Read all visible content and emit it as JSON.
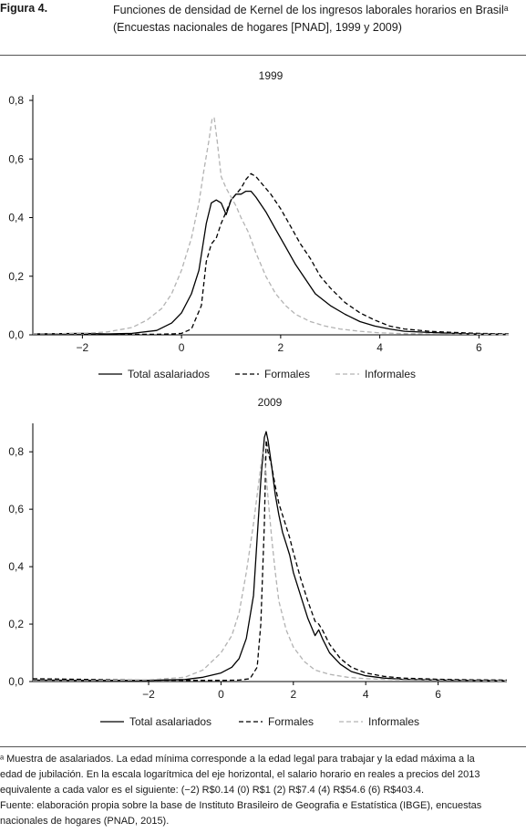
{
  "header": {
    "figure_label": "Figura 4.",
    "title_line1": "Funciones de densidad de Kernel de los ingresos laborales horarios en Brasilᵃ",
    "title_line2": "(Encuestas nacionales de hogares [PNAD], 1999 y 2009)"
  },
  "chart_data": [
    {
      "type": "line",
      "title": "1999",
      "xlabel": "",
      "ylabel": "",
      "xlim": [
        -3.0,
        6.6
      ],
      "ylim": [
        0,
        0.8
      ],
      "xticks": [
        -2,
        0,
        2,
        4,
        6
      ],
      "xtick_labels": [
        "−2",
        "0",
        "2",
        "4",
        "6"
      ],
      "yticks": [
        0,
        0.2,
        0.4,
        0.6,
        0.8
      ],
      "ytick_labels": [
        "0,0",
        "0,2",
        "0,4",
        "0,6",
        "0,8"
      ],
      "grid": false,
      "legend_position": "bottom",
      "series": [
        {
          "name": "Total asalariados",
          "style": "solid",
          "color": "#000000",
          "x": [
            -3.0,
            -2.0,
            -1.5,
            -1.0,
            -0.5,
            -0.2,
            0.0,
            0.2,
            0.35,
            0.5,
            0.6,
            0.7,
            0.8,
            0.9,
            1.0,
            1.1,
            1.2,
            1.3,
            1.4,
            1.5,
            1.7,
            1.9,
            2.1,
            2.3,
            2.5,
            2.7,
            3.0,
            3.3,
            3.6,
            3.9,
            4.2,
            4.5,
            5.0,
            5.5,
            6.0,
            6.6
          ],
          "y": [
            0.003,
            0.005,
            0.003,
            0.005,
            0.015,
            0.04,
            0.075,
            0.14,
            0.22,
            0.38,
            0.45,
            0.46,
            0.45,
            0.41,
            0.46,
            0.48,
            0.48,
            0.49,
            0.49,
            0.47,
            0.42,
            0.36,
            0.3,
            0.24,
            0.19,
            0.14,
            0.1,
            0.07,
            0.045,
            0.03,
            0.02,
            0.012,
            0.008,
            0.005,
            0.003,
            0.002
          ]
        },
        {
          "name": "Formales",
          "style": "dashed",
          "color": "#000000",
          "x": [
            -3.0,
            -2.0,
            -1.0,
            -0.5,
            -0.2,
            0.0,
            0.2,
            0.4,
            0.5,
            0.6,
            0.7,
            0.8,
            0.9,
            1.0,
            1.1,
            1.2,
            1.3,
            1.4,
            1.5,
            1.6,
            1.8,
            2.0,
            2.2,
            2.4,
            2.6,
            2.8,
            3.0,
            3.3,
            3.6,
            3.9,
            4.2,
            4.5,
            5.0,
            5.5,
            6.0,
            6.6
          ],
          "y": [
            0.003,
            0.003,
            0.002,
            0.002,
            0.003,
            0.005,
            0.02,
            0.1,
            0.25,
            0.31,
            0.33,
            0.38,
            0.42,
            0.46,
            0.48,
            0.5,
            0.53,
            0.55,
            0.54,
            0.52,
            0.48,
            0.43,
            0.37,
            0.31,
            0.26,
            0.2,
            0.16,
            0.11,
            0.075,
            0.05,
            0.03,
            0.02,
            0.012,
            0.008,
            0.005,
            0.003
          ]
        },
        {
          "name": "Informales",
          "style": "dashed",
          "color": "#b3b3b3",
          "x": [
            -3.0,
            -2.0,
            -1.5,
            -1.0,
            -0.7,
            -0.4,
            -0.2,
            0.0,
            0.2,
            0.35,
            0.45,
            0.55,
            0.62,
            0.66,
            0.72,
            0.8,
            0.9,
            1.0,
            1.1,
            1.2,
            1.35,
            1.5,
            1.7,
            1.9,
            2.1,
            2.3,
            2.6,
            2.9,
            3.2,
            3.6,
            4.0,
            4.5,
            5.0,
            6.0,
            6.6
          ],
          "y": [
            0.003,
            0.005,
            0.01,
            0.025,
            0.05,
            0.09,
            0.14,
            0.22,
            0.33,
            0.45,
            0.56,
            0.66,
            0.74,
            0.74,
            0.66,
            0.54,
            0.5,
            0.47,
            0.44,
            0.4,
            0.35,
            0.28,
            0.2,
            0.14,
            0.1,
            0.07,
            0.045,
            0.03,
            0.02,
            0.012,
            0.007,
            0.004,
            0.003,
            0.002,
            0.001
          ]
        }
      ]
    },
    {
      "type": "line",
      "title": "2009",
      "xlabel": "",
      "ylabel": "",
      "xlim": [
        -5.2,
        7.9
      ],
      "ylim": [
        0,
        0.88
      ],
      "xticks": [
        -2,
        0,
        2,
        4,
        6
      ],
      "xtick_labels": [
        "−2",
        "0",
        "2",
        "4",
        "6"
      ],
      "yticks": [
        0,
        0.2,
        0.4,
        0.6,
        0.8
      ],
      "ytick_labels": [
        "0,0",
        "0,2",
        "0,4",
        "0,6",
        "0,8"
      ],
      "grid": false,
      "legend_position": "bottom",
      "series": [
        {
          "name": "Total asalariados",
          "style": "solid",
          "color": "#000000",
          "x": [
            -5.2,
            -4.0,
            -3.0,
            -2.0,
            -1.0,
            -0.5,
            0.0,
            0.3,
            0.5,
            0.7,
            0.9,
            1.0,
            1.1,
            1.2,
            1.25,
            1.3,
            1.4,
            1.5,
            1.6,
            1.7,
            1.8,
            1.9,
            2.0,
            2.2,
            2.4,
            2.6,
            2.7,
            2.8,
            3.0,
            3.3,
            3.6,
            4.0,
            4.5,
            5.0,
            6.0,
            7.0,
            7.9
          ],
          "y": [
            0.005,
            0.004,
            0.004,
            0.004,
            0.007,
            0.015,
            0.03,
            0.05,
            0.08,
            0.15,
            0.3,
            0.5,
            0.7,
            0.85,
            0.87,
            0.84,
            0.75,
            0.65,
            0.58,
            0.52,
            0.48,
            0.44,
            0.38,
            0.3,
            0.22,
            0.16,
            0.18,
            0.15,
            0.1,
            0.06,
            0.035,
            0.02,
            0.012,
            0.008,
            0.005,
            0.004,
            0.003
          ]
        },
        {
          "name": "Formales",
          "style": "dashed",
          "color": "#000000",
          "x": [
            -5.2,
            -4.0,
            -3.0,
            -2.0,
            -1.0,
            0.0,
            0.5,
            0.8,
            1.0,
            1.1,
            1.2,
            1.25,
            1.3,
            1.4,
            1.5,
            1.6,
            1.7,
            1.8,
            1.9,
            2.0,
            2.2,
            2.4,
            2.6,
            2.7,
            2.8,
            3.0,
            3.3,
            3.6,
            4.0,
            4.5,
            5.0,
            6.0,
            7.0,
            7.9
          ],
          "y": [
            0.01,
            0.008,
            0.006,
            0.005,
            0.004,
            0.004,
            0.005,
            0.01,
            0.05,
            0.2,
            0.55,
            0.84,
            0.8,
            0.75,
            0.68,
            0.62,
            0.58,
            0.54,
            0.5,
            0.45,
            0.36,
            0.28,
            0.21,
            0.2,
            0.18,
            0.13,
            0.08,
            0.05,
            0.03,
            0.018,
            0.012,
            0.008,
            0.006,
            0.005
          ]
        },
        {
          "name": "Informales",
          "style": "dashed",
          "color": "#b3b3b3",
          "x": [
            -5.2,
            -4.0,
            -3.0,
            -2.0,
            -1.0,
            -0.5,
            0.0,
            0.3,
            0.5,
            0.7,
            0.9,
            1.0,
            1.1,
            1.15,
            1.2,
            1.25,
            1.3,
            1.4,
            1.5,
            1.6,
            1.8,
            2.0,
            2.3,
            2.6,
            3.0,
            3.5,
            4.0,
            5.0,
            6.0,
            7.0,
            7.9
          ],
          "y": [
            0.003,
            0.003,
            0.004,
            0.006,
            0.015,
            0.04,
            0.1,
            0.16,
            0.24,
            0.38,
            0.55,
            0.65,
            0.75,
            0.8,
            0.78,
            0.72,
            0.64,
            0.5,
            0.38,
            0.28,
            0.18,
            0.12,
            0.07,
            0.04,
            0.025,
            0.015,
            0.01,
            0.006,
            0.004,
            0.003,
            0.002
          ]
        }
      ]
    }
  ],
  "footnote": {
    "line1": "ᵃ Muestra de asalariados. La edad mínima corresponde a la edad legal para trabajar y la edad máxima a la",
    "line2": "edad de jubilación. En la escala logarítmica del eje horizontal, el salario horario en reales a precios del 2013",
    "line3": "equivalente a cada valor es el siguiente: (−2) R$0.14 (0) R$1 (2) R$7.4 (4) R$54.6 (6) R$403.4.",
    "line4": "Fuente: elaboración propia sobre la base de Instituto Brasileiro de Geografia e Estatística (IBGE), encuestas",
    "line5": "nacionales de hogares (PNAD, 2015)."
  }
}
